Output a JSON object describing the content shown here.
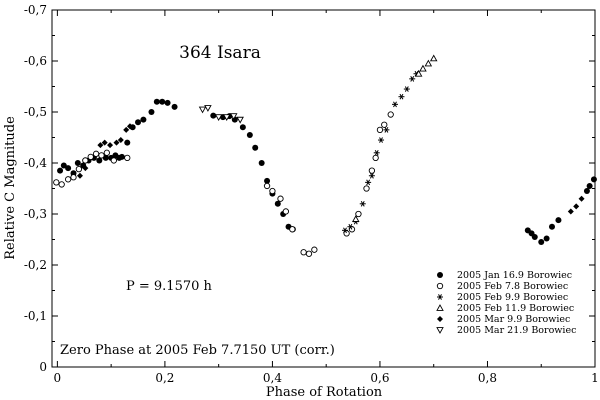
{
  "chart_data": {
    "type": "scatter",
    "title": "364 Isara",
    "xlabel": "Phase of Rotation",
    "ylabel": "Relative C Magnitude",
    "xlim": [
      -0.01,
      1.0
    ],
    "ylim": [
      -0.7,
      0.0
    ],
    "y_inverted": true,
    "x_ticks": [
      {
        "value": 0,
        "label": "0"
      },
      {
        "value": 0.2,
        "label": "0,2"
      },
      {
        "value": 0.4,
        "label": "0,4"
      },
      {
        "value": 0.6,
        "label": "0,6"
      },
      {
        "value": 0.8,
        "label": "0,8"
      },
      {
        "value": 1.0,
        "label": "1"
      }
    ],
    "y_ticks": [
      {
        "value": -0.7,
        "label": "-0,7"
      },
      {
        "value": -0.6,
        "label": "-0,6"
      },
      {
        "value": -0.5,
        "label": "-0,5"
      },
      {
        "value": -0.4,
        "label": "-0,4"
      },
      {
        "value": -0.3,
        "label": "-0,3"
      },
      {
        "value": -0.2,
        "label": "-0,2"
      },
      {
        "value": -0.1,
        "label": "-0,1"
      },
      {
        "value": 0.0,
        "label": "0"
      }
    ],
    "grid": false,
    "legend_position": "bottom-right",
    "annotations": [
      {
        "id": "period",
        "text": "P = 9.1570 h"
      },
      {
        "id": "zero-phase",
        "text": "Zero Phase at 2005 Feb 7.7150 UT (corr.)"
      }
    ],
    "series": [
      {
        "name": "2005 Jan 16.9 Borowiec",
        "marker": "filled-circle",
        "points": [
          [
            0.005,
            -0.385
          ],
          [
            0.012,
            -0.395
          ],
          [
            0.02,
            -0.39
          ],
          [
            0.03,
            -0.38
          ],
          [
            0.038,
            -0.4
          ],
          [
            0.048,
            -0.395
          ],
          [
            0.058,
            -0.405
          ],
          [
            0.068,
            -0.41
          ],
          [
            0.078,
            -0.405
          ],
          [
            0.09,
            -0.41
          ],
          [
            0.1,
            -0.41
          ],
          [
            0.108,
            -0.415
          ],
          [
            0.115,
            -0.41
          ],
          [
            0.12,
            -0.412
          ],
          [
            0.13,
            -0.44
          ],
          [
            0.14,
            -0.47
          ],
          [
            0.15,
            -0.48
          ],
          [
            0.16,
            -0.485
          ],
          [
            0.175,
            -0.5
          ],
          [
            0.185,
            -0.52
          ],
          [
            0.195,
            -0.52
          ],
          [
            0.205,
            -0.518
          ],
          [
            0.218,
            -0.51
          ],
          [
            0.29,
            -0.493
          ],
          [
            0.308,
            -0.49
          ],
          [
            0.32,
            -0.492
          ],
          [
            0.33,
            -0.485
          ],
          [
            0.345,
            -0.47
          ],
          [
            0.358,
            -0.455
          ],
          [
            0.368,
            -0.43
          ],
          [
            0.38,
            -0.4
          ],
          [
            0.39,
            -0.365
          ],
          [
            0.4,
            -0.34
          ],
          [
            0.41,
            -0.32
          ],
          [
            0.42,
            -0.3
          ],
          [
            0.43,
            -0.275
          ],
          [
            0.438,
            -0.27
          ],
          [
            0.875,
            -0.268
          ],
          [
            0.882,
            -0.262
          ],
          [
            0.888,
            -0.255
          ],
          [
            0.9,
            -0.245
          ],
          [
            0.91,
            -0.252
          ],
          [
            0.92,
            -0.275
          ],
          [
            0.932,
            -0.288
          ],
          [
            0.985,
            -0.345
          ],
          [
            0.99,
            -0.355
          ],
          [
            0.998,
            -0.368
          ]
        ]
      },
      {
        "name": "2005 Feb 7.8 Borowiec",
        "marker": "open-circle",
        "points": [
          [
            -0.002,
            -0.362
          ],
          [
            0.008,
            -0.358
          ],
          [
            0.02,
            -0.368
          ],
          [
            0.03,
            -0.372
          ],
          [
            0.04,
            -0.388
          ],
          [
            0.052,
            -0.405
          ],
          [
            0.062,
            -0.412
          ],
          [
            0.072,
            -0.418
          ],
          [
            0.082,
            -0.415
          ],
          [
            0.092,
            -0.42
          ],
          [
            0.105,
            -0.405
          ],
          [
            0.13,
            -0.41
          ],
          [
            0.39,
            -0.355
          ],
          [
            0.4,
            -0.345
          ],
          [
            0.415,
            -0.33
          ],
          [
            0.425,
            -0.305
          ],
          [
            0.437,
            -0.27
          ],
          [
            0.458,
            -0.225
          ],
          [
            0.468,
            -0.222
          ],
          [
            0.478,
            -0.23
          ],
          [
            0.538,
            -0.262
          ],
          [
            0.548,
            -0.27
          ],
          [
            0.56,
            -0.3
          ],
          [
            0.575,
            -0.35
          ],
          [
            0.585,
            -0.385
          ],
          [
            0.592,
            -0.41
          ],
          [
            0.6,
            -0.465
          ],
          [
            0.608,
            -0.475
          ],
          [
            0.62,
            -0.495
          ]
        ]
      },
      {
        "name": "2005 Feb 9.9 Borowiec",
        "marker": "asterisk",
        "points": [
          [
            0.535,
            -0.268
          ],
          [
            0.545,
            -0.275
          ],
          [
            0.555,
            -0.285
          ],
          [
            0.568,
            -0.32
          ],
          [
            0.578,
            -0.362
          ],
          [
            0.585,
            -0.375
          ],
          [
            0.594,
            -0.42
          ],
          [
            0.602,
            -0.445
          ],
          [
            0.612,
            -0.465
          ],
          [
            0.628,
            -0.515
          ],
          [
            0.64,
            -0.53
          ],
          [
            0.65,
            -0.545
          ],
          [
            0.66,
            -0.565
          ],
          [
            0.668,
            -0.575
          ]
        ]
      },
      {
        "name": "2005 Feb 11.9 Borowiec",
        "marker": "open-triangle-up",
        "points": [
          [
            0.555,
            -0.29
          ],
          [
            0.672,
            -0.575
          ],
          [
            0.68,
            -0.585
          ],
          [
            0.69,
            -0.595
          ],
          [
            0.7,
            -0.605
          ]
        ]
      },
      {
        "name": "2005 Mar 9.9 Borowiec",
        "marker": "filled-diamond",
        "points": [
          [
            0.042,
            -0.375
          ],
          [
            0.052,
            -0.39
          ],
          [
            0.08,
            -0.435
          ],
          [
            0.088,
            -0.44
          ],
          [
            0.098,
            -0.435
          ],
          [
            0.11,
            -0.44
          ],
          [
            0.118,
            -0.445
          ],
          [
            0.128,
            -0.465
          ],
          [
            0.135,
            -0.472
          ],
          [
            0.955,
            -0.305
          ],
          [
            0.965,
            -0.315
          ],
          [
            0.975,
            -0.33
          ]
        ]
      },
      {
        "name": "2005 Mar 21.9 Borowiec",
        "marker": "open-triangle-down",
        "points": [
          [
            0.27,
            -0.505
          ],
          [
            0.28,
            -0.508
          ],
          [
            0.3,
            -0.49
          ],
          [
            0.315,
            -0.49
          ],
          [
            0.328,
            -0.492
          ],
          [
            0.34,
            -0.485
          ]
        ]
      }
    ]
  }
}
